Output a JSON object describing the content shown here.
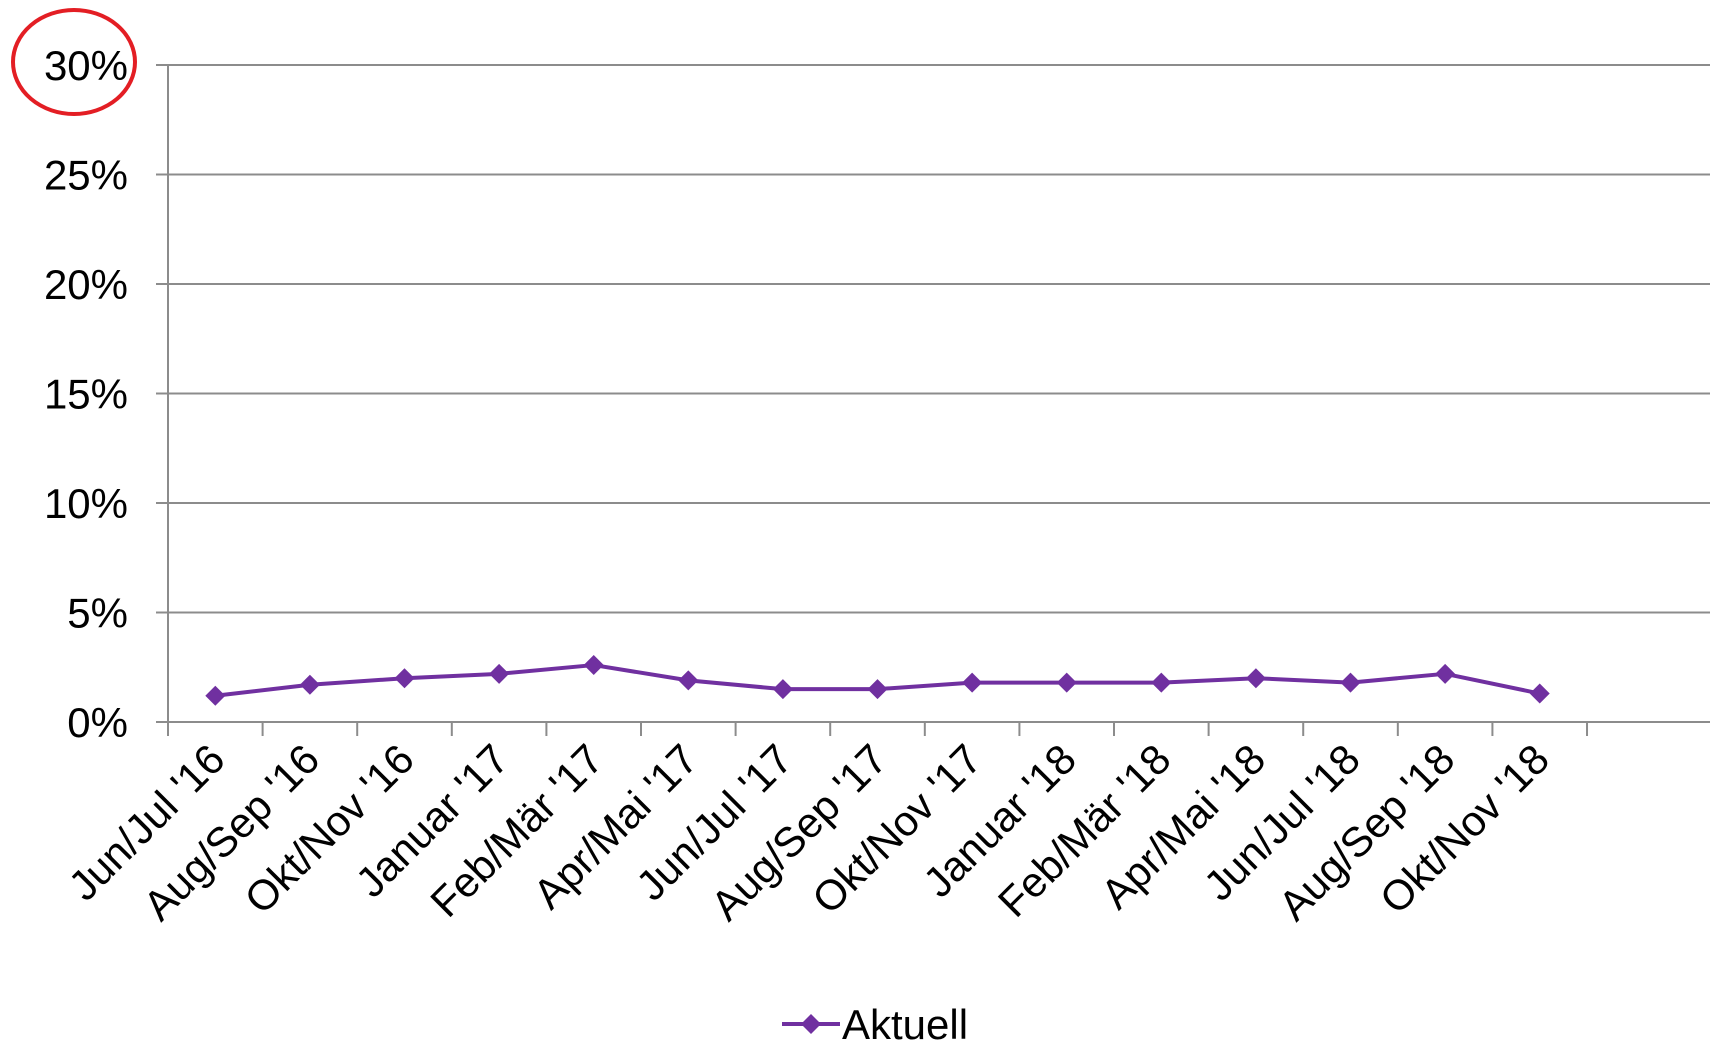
{
  "chart_data": {
    "type": "line",
    "categories": [
      "Jun/Jul '16",
      "Aug/Sep '16",
      "Okt/Nov '16",
      "Januar '17",
      "Feb/Mär '17",
      "Apr/Mai '17",
      "Jun/Jul '17",
      "Aug/Sep '17",
      "Okt/Nov '17",
      "Januar '18",
      "Feb/Mär '18",
      "Apr/Mai '18",
      "Jun/Jul '18",
      "Aug/Sep '18",
      "Okt/Nov '18"
    ],
    "series": [
      {
        "name": "Aktuell",
        "color": "#7030a0",
        "marker": "diamond",
        "values": [
          1.2,
          1.7,
          2.0,
          2.2,
          2.6,
          1.9,
          1.5,
          1.5,
          1.8,
          1.8,
          1.8,
          2.0,
          1.8,
          2.2,
          1.3
        ]
      }
    ],
    "y_ticks": [
      "0%",
      "5%",
      "10%",
      "15%",
      "20%",
      "25%",
      "30%"
    ],
    "ylim": [
      0,
      30
    ],
    "grid": true,
    "legend": "bottom-center",
    "annotation": {
      "type": "circle",
      "target": "30%",
      "color": "#e31e24"
    }
  }
}
